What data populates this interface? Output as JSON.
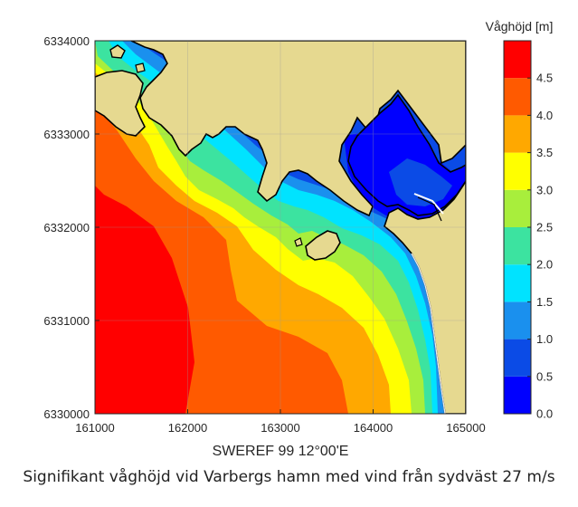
{
  "map": {
    "x_axis": {
      "title": "SWEREF 99 12°00'E",
      "range": [
        161000,
        165000
      ],
      "ticks": [
        "161000",
        "162000",
        "163000",
        "164000",
        "165000"
      ]
    },
    "y_axis": {
      "range": [
        6330000,
        6334000
      ],
      "ticks": [
        "6330000",
        "6331000",
        "6332000",
        "6333000",
        "6334000"
      ]
    },
    "land_color": "#e6d990",
    "coastline_color": "#000000"
  },
  "colorbar": {
    "title": "Våghöjd [m]",
    "range": [
      0,
      5
    ],
    "ticks": [
      "0.0",
      "0.5",
      "1.0",
      "1.5",
      "2.0",
      "2.5",
      "3.0",
      "3.5",
      "4.0",
      "4.5"
    ],
    "band_colors": [
      "#0000ff",
      "#0b4be6",
      "#1a90ee",
      "#00e3ff",
      "#3ce3a0",
      "#a8ee3c",
      "#ffff00",
      "#ffa800",
      "#ff5a00",
      "#ff0000"
    ]
  },
  "caption": "Signifikant våghöjd vid Varbergs hamn med vind från sydväst 27 m/s"
}
